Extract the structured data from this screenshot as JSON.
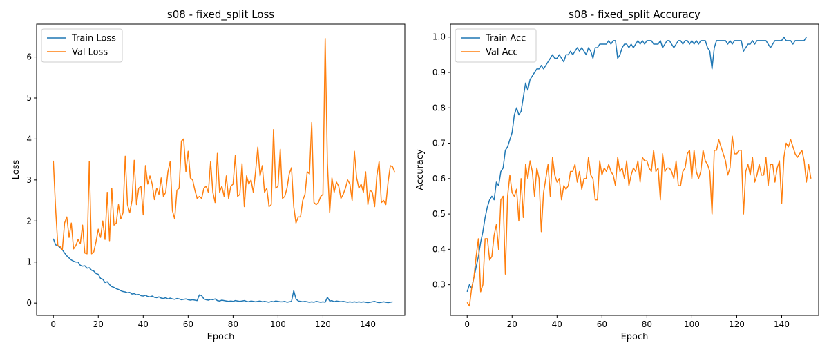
{
  "colors": {
    "train": "#1f77b4",
    "val": "#ff7f0e"
  },
  "chart_data": [
    {
      "type": "line",
      "title": "s08 - fixed_split Loss",
      "xlabel": "Epoch",
      "ylabel": "Loss",
      "xlim": [
        -7.45,
        156.45
      ],
      "ylim": [
        -0.3,
        6.8
      ],
      "xticks": [
        0,
        20,
        40,
        60,
        80,
        100,
        120,
        140
      ],
      "yticks": [
        0,
        1,
        2,
        3,
        4,
        5,
        6
      ],
      "legend": "top-left",
      "series": [
        {
          "name": "Train Loss",
          "color": "#1f77b4",
          "values": [
            1.57,
            1.42,
            1.4,
            1.35,
            1.3,
            1.22,
            1.15,
            1.1,
            1.05,
            1.02,
            1.0,
            1.0,
            0.92,
            0.9,
            0.91,
            0.85,
            0.86,
            0.8,
            0.78,
            0.72,
            0.7,
            0.6,
            0.58,
            0.5,
            0.52,
            0.45,
            0.4,
            0.38,
            0.35,
            0.33,
            0.3,
            0.28,
            0.27,
            0.25,
            0.26,
            0.22,
            0.23,
            0.2,
            0.21,
            0.18,
            0.17,
            0.19,
            0.16,
            0.15,
            0.17,
            0.14,
            0.13,
            0.15,
            0.12,
            0.11,
            0.13,
            0.1,
            0.12,
            0.1,
            0.09,
            0.11,
            0.1,
            0.08,
            0.09,
            0.1,
            0.08,
            0.07,
            0.08,
            0.07,
            0.06,
            0.2,
            0.18,
            0.1,
            0.08,
            0.07,
            0.09,
            0.08,
            0.1,
            0.06,
            0.05,
            0.07,
            0.06,
            0.05,
            0.04,
            0.05,
            0.04,
            0.06,
            0.05,
            0.04,
            0.05,
            0.06,
            0.04,
            0.03,
            0.05,
            0.04,
            0.03,
            0.04,
            0.05,
            0.03,
            0.04,
            0.03,
            0.02,
            0.04,
            0.03,
            0.05,
            0.04,
            0.03,
            0.03,
            0.04,
            0.02,
            0.03,
            0.04,
            0.3,
            0.1,
            0.05,
            0.04,
            0.03,
            0.04,
            0.03,
            0.02,
            0.03,
            0.02,
            0.04,
            0.03,
            0.02,
            0.03,
            0.02,
            0.14,
            0.05,
            0.06,
            0.03,
            0.05,
            0.04,
            0.03,
            0.04,
            0.03,
            0.02,
            0.03,
            0.02,
            0.03,
            0.02,
            0.03,
            0.02,
            0.03,
            0.02,
            0.01,
            0.02,
            0.03,
            0.04,
            0.02,
            0.01,
            0.02,
            0.03,
            0.02,
            0.01,
            0.02,
            0.03
          ]
        },
        {
          "name": "Val Loss",
          "color": "#ff7f0e",
          "values": [
            3.47,
            2.3,
            1.4,
            1.38,
            1.3,
            1.95,
            2.1,
            1.6,
            1.95,
            1.32,
            1.4,
            1.55,
            1.45,
            1.9,
            1.22,
            1.2,
            3.45,
            1.2,
            1.25,
            1.5,
            1.8,
            1.6,
            2.0,
            1.55,
            2.7,
            1.52,
            2.8,
            1.9,
            1.95,
            2.4,
            2.05,
            2.2,
            3.58,
            2.4,
            2.2,
            2.5,
            3.48,
            2.4,
            2.8,
            2.85,
            2.15,
            3.35,
            2.9,
            3.1,
            2.9,
            2.52,
            2.8,
            2.65,
            3.05,
            2.6,
            2.7,
            3.2,
            3.45,
            2.25,
            2.05,
            2.75,
            2.8,
            3.95,
            4.0,
            3.2,
            3.7,
            3.05,
            3.0,
            2.75,
            2.55,
            2.6,
            2.55,
            2.8,
            2.85,
            2.7,
            3.45,
            2.7,
            2.45,
            3.65,
            2.7,
            2.85,
            2.6,
            3.1,
            2.55,
            2.85,
            2.9,
            3.6,
            2.6,
            2.65,
            3.4,
            2.35,
            3.1,
            2.9,
            3.0,
            2.7,
            3.2,
            3.8,
            3.1,
            3.35,
            2.7,
            2.8,
            2.35,
            2.4,
            4.23,
            2.8,
            2.85,
            3.75,
            2.55,
            2.6,
            2.8,
            3.15,
            3.3,
            2.35,
            1.95,
            2.1,
            2.1,
            2.5,
            2.65,
            3.2,
            3.15,
            4.4,
            2.45,
            2.4,
            2.45,
            2.6,
            2.65,
            6.45,
            3.4,
            2.2,
            3.05,
            2.7,
            2.95,
            2.85,
            2.55,
            2.65,
            2.8,
            3.0,
            2.9,
            2.5,
            3.7,
            3.05,
            2.8,
            2.9,
            2.7,
            3.2,
            2.4,
            2.75,
            2.7,
            2.35,
            3.1,
            3.45,
            2.45,
            2.5,
            2.4,
            2.95,
            3.35,
            3.32,
            3.18
          ]
        }
      ]
    },
    {
      "type": "line",
      "title": "s08 - fixed_split Accuracy",
      "xlabel": "Epoch",
      "ylabel": "Accuracy",
      "xlim": [
        -7.45,
        156.45
      ],
      "ylim": [
        0.2135,
        1.0365
      ],
      "xticks": [
        0,
        20,
        40,
        60,
        80,
        100,
        120,
        140
      ],
      "yticks": [
        0.3,
        0.4,
        0.5,
        0.6,
        0.7,
        0.8,
        0.9,
        1.0
      ],
      "legend": "top-left",
      "series": [
        {
          "name": "Train Acc",
          "color": "#1f77b4",
          "values": [
            0.28,
            0.3,
            0.29,
            0.32,
            0.35,
            0.38,
            0.42,
            0.45,
            0.49,
            0.52,
            0.54,
            0.55,
            0.54,
            0.59,
            0.58,
            0.62,
            0.63,
            0.68,
            0.69,
            0.71,
            0.73,
            0.78,
            0.8,
            0.78,
            0.79,
            0.83,
            0.87,
            0.85,
            0.88,
            0.89,
            0.9,
            0.91,
            0.91,
            0.92,
            0.91,
            0.92,
            0.93,
            0.94,
            0.95,
            0.94,
            0.94,
            0.95,
            0.94,
            0.93,
            0.95,
            0.95,
            0.96,
            0.95,
            0.96,
            0.97,
            0.96,
            0.97,
            0.96,
            0.95,
            0.97,
            0.96,
            0.94,
            0.97,
            0.97,
            0.98,
            0.98,
            0.98,
            0.98,
            0.99,
            0.98,
            0.99,
            0.99,
            0.94,
            0.95,
            0.97,
            0.98,
            0.98,
            0.97,
            0.98,
            0.97,
            0.98,
            0.99,
            0.98,
            0.99,
            0.98,
            0.99,
            0.99,
            0.99,
            0.98,
            0.98,
            0.98,
            0.99,
            0.97,
            0.98,
            0.99,
            0.99,
            0.98,
            0.97,
            0.98,
            0.99,
            0.99,
            0.98,
            0.99,
            0.99,
            0.98,
            0.99,
            0.98,
            0.99,
            0.98,
            0.99,
            0.99,
            0.99,
            0.97,
            0.96,
            0.91,
            0.97,
            0.99,
            0.99,
            0.99,
            0.99,
            0.99,
            0.98,
            0.99,
            0.98,
            0.99,
            0.99,
            0.99,
            0.99,
            0.96,
            0.97,
            0.98,
            0.98,
            0.99,
            0.98,
            0.99,
            0.99,
            0.99,
            0.99,
            0.99,
            0.98,
            0.97,
            0.98,
            0.99,
            0.99,
            0.99,
            0.99,
            1.0,
            0.99,
            0.99,
            0.99,
            0.98,
            0.99,
            0.99,
            0.99,
            0.99,
            0.99,
            1.0
          ]
        },
        {
          "name": "Val Acc",
          "color": "#ff7f0e",
          "values": [
            0.25,
            0.24,
            0.29,
            0.32,
            0.38,
            0.43,
            0.28,
            0.3,
            0.43,
            0.43,
            0.37,
            0.38,
            0.44,
            0.47,
            0.4,
            0.54,
            0.55,
            0.33,
            0.55,
            0.61,
            0.56,
            0.55,
            0.57,
            0.48,
            0.6,
            0.49,
            0.64,
            0.6,
            0.65,
            0.62,
            0.55,
            0.63,
            0.6,
            0.45,
            0.56,
            0.6,
            0.64,
            0.55,
            0.66,
            0.61,
            0.59,
            0.6,
            0.54,
            0.58,
            0.57,
            0.58,
            0.62,
            0.62,
            0.64,
            0.59,
            0.62,
            0.57,
            0.6,
            0.6,
            0.66,
            0.61,
            0.6,
            0.54,
            0.54,
            0.65,
            0.61,
            0.63,
            0.62,
            0.64,
            0.62,
            0.61,
            0.58,
            0.66,
            0.62,
            0.63,
            0.6,
            0.65,
            0.58,
            0.61,
            0.63,
            0.62,
            0.65,
            0.59,
            0.66,
            0.65,
            0.65,
            0.63,
            0.62,
            0.68,
            0.62,
            0.63,
            0.54,
            0.67,
            0.62,
            0.63,
            0.63,
            0.62,
            0.6,
            0.65,
            0.58,
            0.58,
            0.62,
            0.63,
            0.67,
            0.68,
            0.6,
            0.68,
            0.62,
            0.6,
            0.62,
            0.68,
            0.65,
            0.64,
            0.62,
            0.5,
            0.68,
            0.68,
            0.71,
            0.69,
            0.67,
            0.65,
            0.61,
            0.63,
            0.72,
            0.67,
            0.67,
            0.68,
            0.68,
            0.5,
            0.62,
            0.64,
            0.61,
            0.66,
            0.59,
            0.61,
            0.64,
            0.61,
            0.61,
            0.66,
            0.58,
            0.64,
            0.64,
            0.59,
            0.63,
            0.65,
            0.53,
            0.66,
            0.7,
            0.69,
            0.71,
            0.69,
            0.67,
            0.66,
            0.67,
            0.68,
            0.65,
            0.59,
            0.64,
            0.6
          ]
        }
      ]
    }
  ]
}
